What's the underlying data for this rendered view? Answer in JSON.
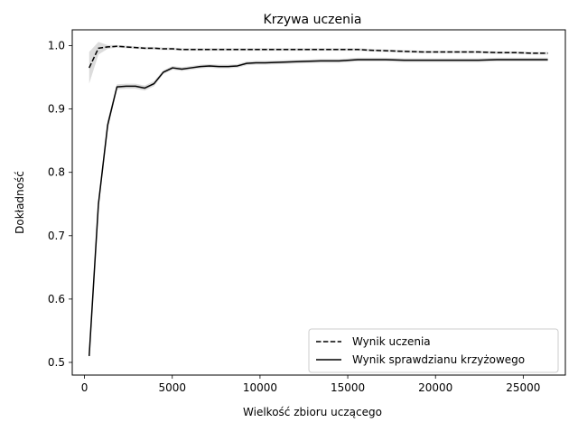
{
  "chart_data": {
    "type": "line",
    "title": "Krzywa uczenia",
    "xlabel": "Wielkość zbioru uczącego",
    "ylabel": "Dokładność",
    "xlim": [
      -700,
      27400
    ],
    "ylim": [
      0.48,
      1.025
    ],
    "xticks": [
      0,
      5000,
      10000,
      15000,
      20000,
      25000
    ],
    "yticks": [
      0.5,
      0.6,
      0.7,
      0.8,
      0.9,
      1.0
    ],
    "ytick_labels": [
      "0.5",
      "0.6",
      "0.7",
      "0.8",
      "0.9",
      "1.0"
    ],
    "grid": false,
    "legend_position": "lower-right",
    "band_color": "#d3d3d3",
    "line_color": "#000000",
    "series": [
      {
        "name": "Wynik uczenia",
        "style": "dashed",
        "x": [
          264,
          792,
          1320,
          1848,
          2376,
          2904,
          3432,
          3960,
          4488,
          5016,
          5544,
          6072,
          6600,
          7128,
          7656,
          8184,
          8712,
          9240,
          9768,
          10296,
          11352,
          12408,
          13464,
          14520,
          15576,
          16104,
          17160,
          18216,
          19272,
          20328,
          21384,
          22440,
          23496,
          24552,
          25608,
          26400
        ],
        "y": [
          0.965,
          0.996,
          0.998,
          0.999,
          0.998,
          0.997,
          0.996,
          0.996,
          0.995,
          0.995,
          0.994,
          0.994,
          0.994,
          0.994,
          0.994,
          0.994,
          0.994,
          0.994,
          0.994,
          0.994,
          0.994,
          0.994,
          0.994,
          0.994,
          0.994,
          0.993,
          0.992,
          0.991,
          0.99,
          0.99,
          0.99,
          0.99,
          0.989,
          0.989,
          0.988,
          0.988
        ],
        "band": [
          0.025,
          0.01,
          0.003,
          0.002,
          0.002,
          0.002,
          0.002,
          0.002,
          0.002,
          0.002,
          0.002,
          0.002,
          0.002,
          0.002,
          0.002,
          0.002,
          0.002,
          0.002,
          0.002,
          0.002,
          0.002,
          0.002,
          0.002,
          0.002,
          0.002,
          0.002,
          0.002,
          0.002,
          0.002,
          0.002,
          0.002,
          0.002,
          0.002,
          0.002,
          0.002,
          0.002
        ]
      },
      {
        "name": "Wynik sprawdzianu krzyżowego",
        "style": "solid",
        "x": [
          264,
          792,
          1320,
          1848,
          2376,
          2904,
          3432,
          3960,
          4488,
          5016,
          5544,
          6072,
          6600,
          7128,
          7656,
          8184,
          8712,
          9240,
          9768,
          10296,
          11352,
          12408,
          13464,
          14520,
          15576,
          16104,
          17160,
          18216,
          19272,
          20328,
          21384,
          22440,
          23496,
          24552,
          25608,
          26400
        ],
        "y": [
          0.51,
          0.75,
          0.875,
          0.935,
          0.936,
          0.936,
          0.933,
          0.94,
          0.958,
          0.965,
          0.963,
          0.965,
          0.967,
          0.968,
          0.967,
          0.967,
          0.968,
          0.972,
          0.973,
          0.973,
          0.974,
          0.975,
          0.976,
          0.976,
          0.978,
          0.978,
          0.978,
          0.977,
          0.977,
          0.977,
          0.977,
          0.977,
          0.978,
          0.978,
          0.978,
          0.978
        ],
        "band": [
          0.006,
          0.008,
          0.008,
          0.004,
          0.004,
          0.004,
          0.004,
          0.004,
          0.003,
          0.003,
          0.003,
          0.003,
          0.003,
          0.003,
          0.003,
          0.003,
          0.003,
          0.003,
          0.003,
          0.003,
          0.003,
          0.003,
          0.003,
          0.003,
          0.003,
          0.003,
          0.003,
          0.003,
          0.003,
          0.003,
          0.003,
          0.003,
          0.003,
          0.003,
          0.003,
          0.003
        ]
      }
    ]
  }
}
